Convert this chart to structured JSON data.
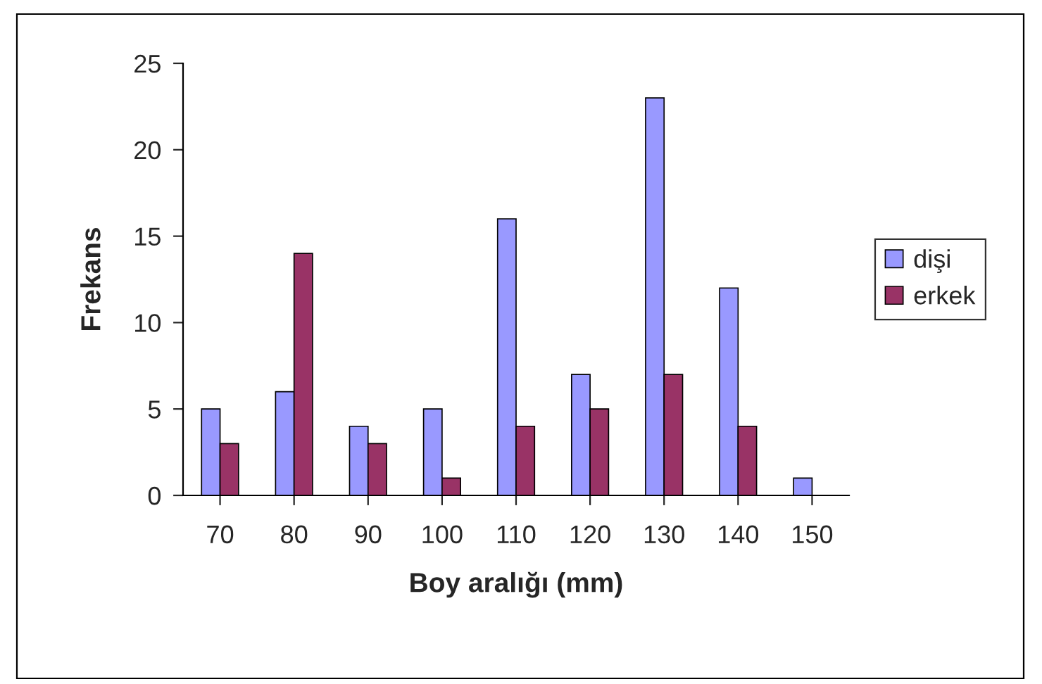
{
  "chart_data": {
    "type": "bar",
    "xlabel": "Boy aralığı (mm)",
    "ylabel": "Frekans",
    "categories": [
      "70",
      "80",
      "90",
      "100",
      "110",
      "120",
      "130",
      "140",
      "150"
    ],
    "series": [
      {
        "name": "dişi",
        "color": "#9999ff",
        "values": [
          5,
          6,
          4,
          5,
          16,
          7,
          23,
          12,
          1
        ]
      },
      {
        "name": "erkek",
        "color": "#993366",
        "values": [
          3,
          14,
          3,
          1,
          4,
          5,
          7,
          4,
          null
        ]
      }
    ],
    "ylim": [
      0,
      25
    ],
    "yticks": [
      0,
      5,
      10,
      15,
      20,
      25
    ],
    "grid": false,
    "legend": "right"
  }
}
